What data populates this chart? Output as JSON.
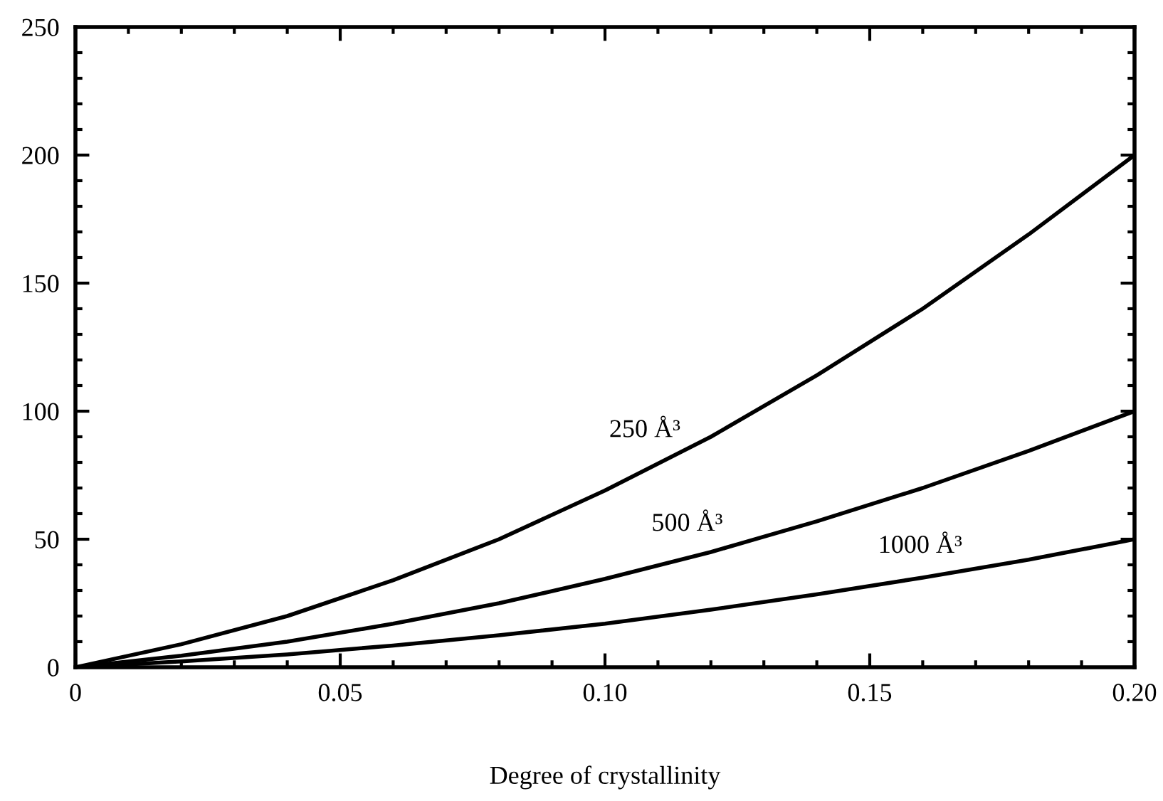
{
  "chart_data": {
    "type": "line",
    "xlabel": "Degree of crystallinity",
    "x": [
      0,
      0.02,
      0.04,
      0.06,
      0.08,
      0.1,
      0.12,
      0.14,
      0.16,
      0.18,
      0.2
    ],
    "series": [
      {
        "name": "250 Å³",
        "color": "#000000",
        "values": [
          0,
          9,
          20,
          34,
          50,
          69,
          90,
          114,
          140,
          169,
          200
        ]
      },
      {
        "name": "500 Å³",
        "color": "#000000",
        "values": [
          0,
          4.5,
          10,
          17,
          25,
          34.5,
          45,
          57,
          70,
          84.5,
          100
        ]
      },
      {
        "name": "1000 Å³",
        "color": "#000000",
        "values": [
          0,
          2.3,
          5,
          8.5,
          12.5,
          17,
          22.5,
          28.5,
          35,
          42,
          50
        ]
      }
    ],
    "xlim": [
      0,
      0.2
    ],
    "ylim": [
      0,
      250
    ],
    "xticks": [
      0,
      0.05,
      {
        "value": 0.1,
        "label": "0.10"
      },
      0.15,
      {
        "value": 0.2,
        "label": "0.20"
      }
    ],
    "yticks": [
      0,
      50,
      100,
      150,
      200,
      250
    ],
    "grid": false,
    "legend": false,
    "marker": "none",
    "line_style": "solid"
  }
}
